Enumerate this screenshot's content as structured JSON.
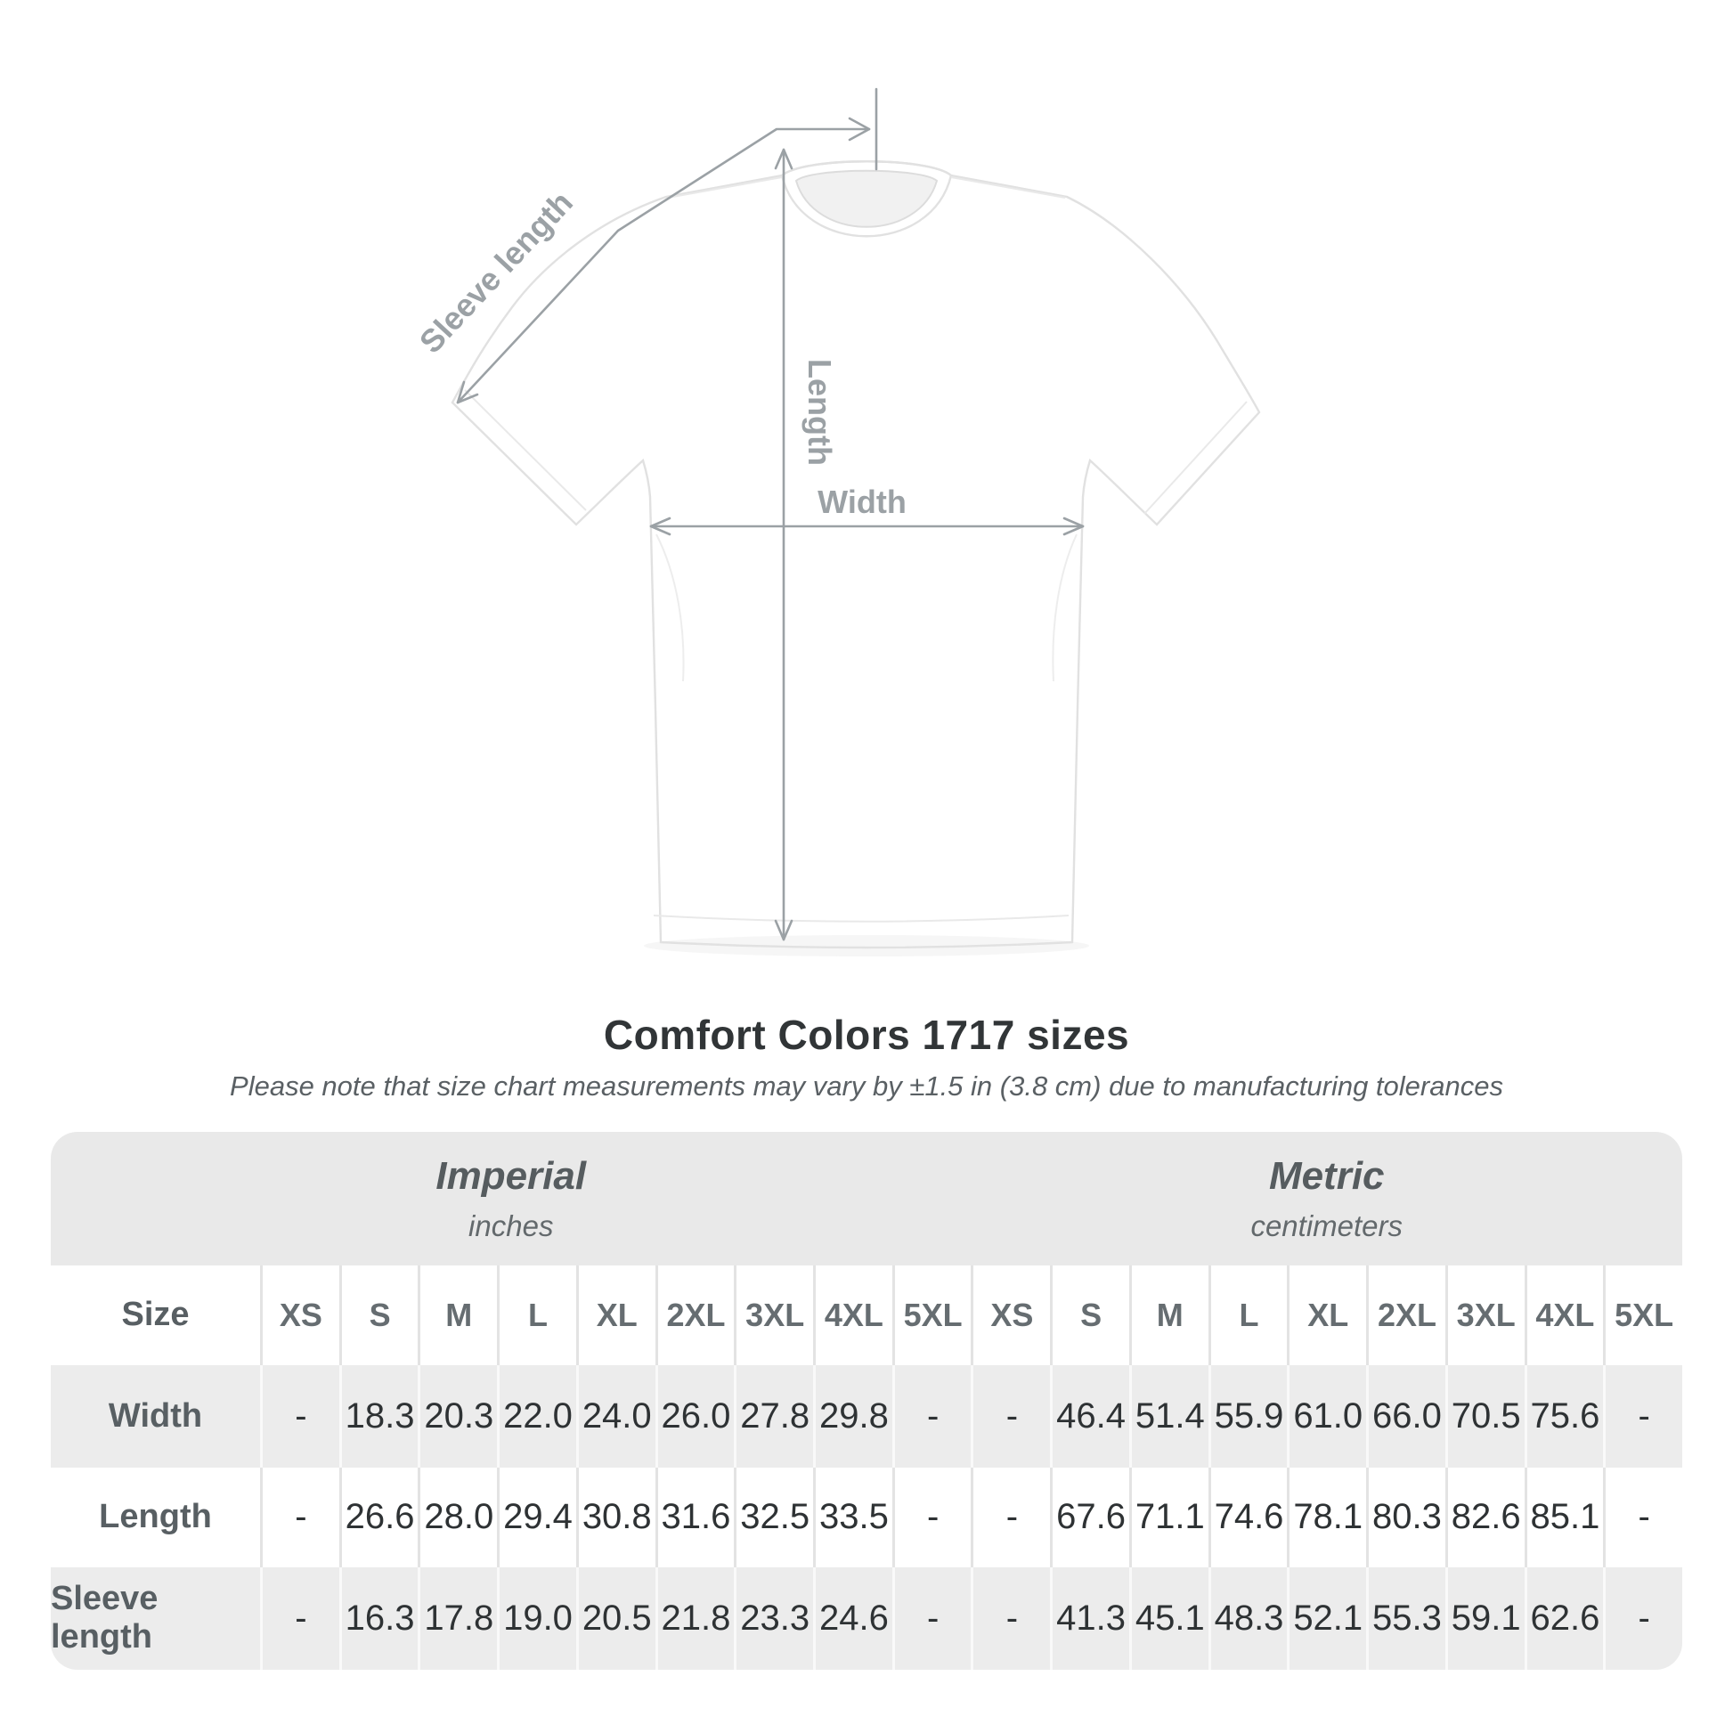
{
  "page": {
    "title": "Comfort Colors 1717 sizes",
    "subtitle": "Please note that size chart measurements may vary by ±1.5 in (3.8 cm) due to manufacturing tolerances"
  },
  "diagram": {
    "sleeve_length_label": "Sleeve length",
    "length_label": "Length",
    "width_label": "Width"
  },
  "table": {
    "size_header": "Size",
    "groups": [
      {
        "name": "Imperial",
        "unit": "inches"
      },
      {
        "name": "Metric",
        "unit": "centimeters"
      }
    ],
    "sizes": [
      "XS",
      "S",
      "M",
      "L",
      "XL",
      "2XL",
      "3XL",
      "4XL",
      "5XL"
    ],
    "rows": [
      {
        "label": "Width",
        "values": [
          "-",
          "18.3",
          "20.3",
          "22.0",
          "24.0",
          "26.0",
          "27.8",
          "29.8",
          "-",
          "-",
          "46.4",
          "51.4",
          "55.9",
          "61.0",
          "66.0",
          "70.5",
          "75.6",
          "-"
        ]
      },
      {
        "label": "Length",
        "values": [
          "-",
          "26.6",
          "28.0",
          "29.4",
          "30.8",
          "31.6",
          "32.5",
          "33.5",
          "-",
          "-",
          "67.6",
          "71.1",
          "74.6",
          "78.1",
          "80.3",
          "82.6",
          "85.1",
          "-"
        ]
      },
      {
        "label": "Sleeve length",
        "values": [
          "-",
          "16.3",
          "17.8",
          "19.0",
          "20.5",
          "21.8",
          "23.3",
          "24.6",
          "-",
          "-",
          "41.3",
          "45.1",
          "48.3",
          "52.1",
          "55.3",
          "59.1",
          "62.6",
          "-"
        ]
      }
    ]
  },
  "colors": {
    "accent_gray": "#9ba1a5",
    "band_bg": "#e9e9e9",
    "row_alt_bg": "#ececec",
    "title_text": "#313537",
    "value_text": "#2e3234",
    "header_text": "#666d71",
    "label_text": "#585f63"
  },
  "chart_data": {
    "type": "table",
    "title": "Comfort Colors 1717 sizes",
    "note": "Please note that size chart measurements may vary by ±1.5 in (3.8 cm) due to manufacturing tolerances",
    "unit_groups": [
      "Imperial (inches)",
      "Metric (centimeters)"
    ],
    "sizes": [
      "XS",
      "S",
      "M",
      "L",
      "XL",
      "2XL",
      "3XL",
      "4XL",
      "5XL"
    ],
    "rows": [
      {
        "measure": "Width",
        "imperial_in": [
          null,
          18.3,
          20.3,
          22.0,
          24.0,
          26.0,
          27.8,
          29.8,
          null
        ],
        "metric_cm": [
          null,
          46.4,
          51.4,
          55.9,
          61.0,
          66.0,
          70.5,
          75.6,
          null
        ]
      },
      {
        "measure": "Length",
        "imperial_in": [
          null,
          26.6,
          28.0,
          29.4,
          30.8,
          31.6,
          32.5,
          33.5,
          null
        ],
        "metric_cm": [
          null,
          67.6,
          71.1,
          74.6,
          78.1,
          80.3,
          82.6,
          85.1,
          null
        ]
      },
      {
        "measure": "Sleeve length",
        "imperial_in": [
          null,
          16.3,
          17.8,
          19.0,
          20.5,
          21.8,
          23.3,
          24.6,
          null
        ],
        "metric_cm": [
          null,
          41.3,
          45.1,
          48.3,
          52.1,
          55.3,
          59.1,
          62.6,
          null
        ]
      }
    ]
  }
}
